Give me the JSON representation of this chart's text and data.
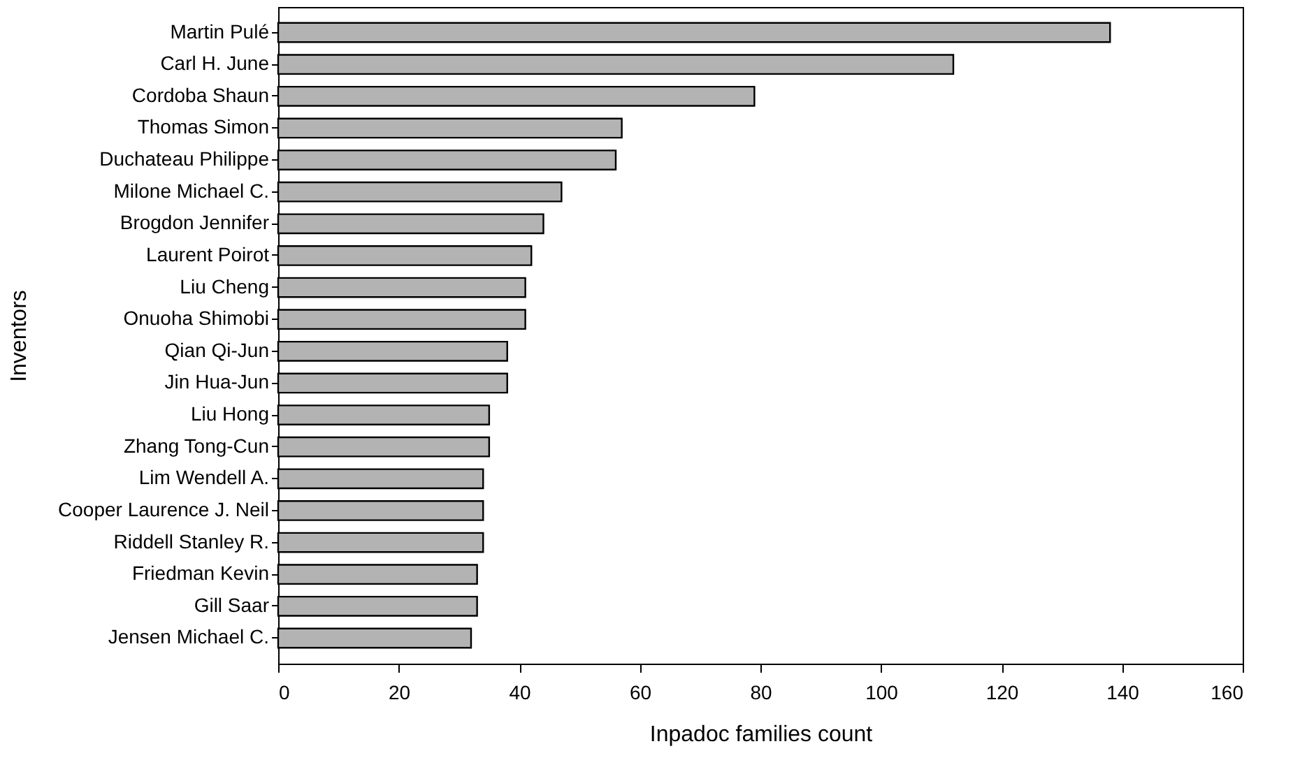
{
  "chart_data": {
    "type": "bar",
    "orientation": "horizontal",
    "xlabel": "Inpadoc families count",
    "ylabel": "Inventors",
    "categories": [
      "Martin Pulé",
      "Carl H. June",
      "Cordoba Shaun",
      "Thomas Simon",
      "Duchateau Philippe",
      "Milone Michael C.",
      "Brogdon Jennifer",
      "Laurent Poirot",
      "Liu Cheng",
      "Onuoha Shimobi",
      "Qian Qi-Jun",
      "Jin Hua-Jun",
      "Liu Hong",
      "Zhang Tong-Cun",
      "Lim Wendell A.",
      "Cooper Laurence J. Neil",
      "Riddell Stanley R.",
      "Friedman Kevin",
      "Gill Saar",
      "Jensen Michael C."
    ],
    "values": [
      138,
      112,
      79,
      57,
      56,
      47,
      44,
      42,
      41,
      41,
      38,
      38,
      35,
      35,
      34,
      34,
      34,
      33,
      33,
      32
    ],
    "color": "#b3b3b3",
    "xlim": [
      0,
      160
    ],
    "xticks": [
      0,
      20,
      40,
      60,
      80,
      100,
      120,
      140,
      160
    ],
    "grid": false
  }
}
